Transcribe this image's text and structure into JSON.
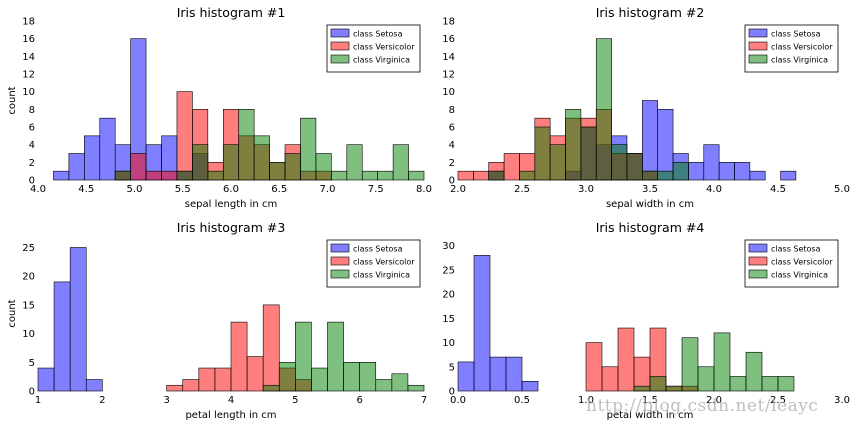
{
  "watermark": "http://blog.csdn.net/leayc",
  "colors": {
    "setosa": "#0000ff",
    "versicolor": "#ff0000",
    "virginica": "#008000",
    "fill_alpha": 0.5
  },
  "chart_data": [
    {
      "type": "bar",
      "title": "Iris histogram #1",
      "xlabel": "sepal length in cm",
      "ylabel": "count",
      "xlim": [
        4.0,
        8.0
      ],
      "ylim": [
        0,
        18
      ],
      "xticks": [
        "4.0",
        "4.5",
        "5.0",
        "5.5",
        "6.0",
        "6.5",
        "7.0",
        "7.5",
        "8.0"
      ],
      "yticks": [
        "0",
        "2",
        "4",
        "6",
        "8",
        "10",
        "12",
        "14",
        "16",
        "18"
      ],
      "bin_width": 0.16,
      "legend": "top-right",
      "series": [
        {
          "name": "class Setosa",
          "color_key": "setosa",
          "bins": [
            [
              4.0,
              4.16,
              0
            ],
            [
              4.16,
              4.32,
              1
            ],
            [
              4.32,
              4.48,
              3
            ],
            [
              4.48,
              4.64,
              5
            ],
            [
              4.64,
              4.8,
              7
            ],
            [
              4.8,
              4.96,
              4
            ],
            [
              4.96,
              5.12,
              16
            ],
            [
              5.12,
              5.28,
              4
            ],
            [
              5.28,
              5.44,
              5
            ],
            [
              5.44,
              5.6,
              1
            ],
            [
              5.6,
              5.76,
              3
            ]
          ]
        },
        {
          "name": "class Versicolor",
          "color_key": "versicolor",
          "bins": [
            [
              4.8,
              4.96,
              1
            ],
            [
              4.96,
              5.12,
              3
            ],
            [
              5.12,
              5.28,
              1
            ],
            [
              5.28,
              5.44,
              1
            ],
            [
              5.44,
              5.6,
              10
            ],
            [
              5.6,
              5.76,
              8
            ],
            [
              5.76,
              5.92,
              2
            ],
            [
              5.92,
              6.08,
              8
            ],
            [
              6.08,
              6.24,
              5
            ],
            [
              6.24,
              6.4,
              4
            ],
            [
              6.4,
              6.56,
              2
            ],
            [
              6.56,
              6.72,
              4
            ],
            [
              6.72,
              6.88,
              1
            ],
            [
              6.88,
              7.04,
              1
            ]
          ]
        },
        {
          "name": "class Virginica",
          "color_key": "virginica",
          "bins": [
            [
              4.8,
              4.96,
              1
            ],
            [
              5.44,
              5.6,
              1
            ],
            [
              5.6,
              5.76,
              4
            ],
            [
              5.76,
              5.92,
              1
            ],
            [
              5.92,
              6.08,
              4
            ],
            [
              6.08,
              6.24,
              8
            ],
            [
              6.24,
              6.4,
              5
            ],
            [
              6.4,
              6.56,
              2
            ],
            [
              6.56,
              6.72,
              3
            ],
            [
              6.72,
              6.88,
              7
            ],
            [
              6.88,
              7.04,
              3
            ],
            [
              7.04,
              7.2,
              1
            ],
            [
              7.2,
              7.36,
              4
            ],
            [
              7.36,
              7.52,
              1
            ],
            [
              7.52,
              7.68,
              1
            ],
            [
              7.68,
              7.84,
              4
            ],
            [
              7.84,
              8.0,
              1
            ]
          ]
        }
      ]
    },
    {
      "type": "bar",
      "title": "Iris histogram #2",
      "xlabel": "sepal width in cm",
      "ylabel": "",
      "xlim": [
        2.0,
        5.0
      ],
      "ylim": [
        0,
        18
      ],
      "xticks": [
        "2.0",
        "2.5",
        "3.0",
        "3.5",
        "4.0",
        "4.5",
        "5.0"
      ],
      "yticks": [
        "0",
        "2",
        "4",
        "6",
        "8",
        "10",
        "12",
        "14",
        "16",
        "18"
      ],
      "bin_width": 0.12,
      "legend": "top-right",
      "series": [
        {
          "name": "class Setosa",
          "color_key": "setosa",
          "bins": [
            [
              2.24,
              2.36,
              1
            ],
            [
              2.84,
              2.96,
              1
            ],
            [
              2.96,
              3.08,
              6
            ],
            [
              3.08,
              3.2,
              4
            ],
            [
              3.2,
              3.32,
              5
            ],
            [
              3.32,
              3.44,
              3
            ],
            [
              3.44,
              3.56,
              9
            ],
            [
              3.56,
              3.68,
              8
            ],
            [
              3.68,
              3.8,
              3
            ],
            [
              3.8,
              3.92,
              2
            ],
            [
              3.92,
              4.04,
              4
            ],
            [
              4.04,
              4.16,
              2
            ],
            [
              4.16,
              4.28,
              2
            ],
            [
              4.28,
              4.4,
              1
            ],
            [
              4.52,
              4.64,
              1
            ]
          ]
        },
        {
          "name": "class Versicolor",
          "color_key": "versicolor",
          "bins": [
            [
              2.0,
              2.12,
              1
            ],
            [
              2.12,
              2.24,
              1
            ],
            [
              2.24,
              2.36,
              2
            ],
            [
              2.36,
              2.48,
              3
            ],
            [
              2.48,
              2.6,
              3
            ],
            [
              2.6,
              2.72,
              7
            ],
            [
              2.72,
              2.84,
              5
            ],
            [
              2.84,
              2.96,
              7
            ],
            [
              2.96,
              3.08,
              7
            ],
            [
              3.08,
              3.2,
              8
            ],
            [
              3.2,
              3.32,
              3
            ],
            [
              3.32,
              3.44,
              3
            ],
            [
              3.44,
              3.56,
              1
            ]
          ]
        },
        {
          "name": "class Virginica",
          "color_key": "virginica",
          "bins": [
            [
              2.24,
              2.36,
              1
            ],
            [
              2.48,
              2.6,
              1
            ],
            [
              2.6,
              2.72,
              6
            ],
            [
              2.72,
              2.84,
              4
            ],
            [
              2.84,
              2.96,
              8
            ],
            [
              2.96,
              3.08,
              6
            ],
            [
              3.08,
              3.2,
              16
            ],
            [
              3.2,
              3.32,
              4
            ],
            [
              3.32,
              3.44,
              3
            ],
            [
              3.44,
              3.56,
              1
            ],
            [
              3.56,
              3.68,
              1
            ],
            [
              3.68,
              3.8,
              2
            ]
          ]
        }
      ]
    },
    {
      "type": "bar",
      "title": "Iris histogram #3",
      "xlabel": "petal length in cm",
      "ylabel": "count",
      "xlim": [
        1,
        7
      ],
      "ylim": [
        0,
        27
      ],
      "xticks": [
        "1",
        "2",
        "3",
        "4",
        "5",
        "6",
        "7"
      ],
      "yticks": [
        "0",
        "5",
        "10",
        "15",
        "20",
        "25"
      ],
      "bin_width": 0.25,
      "legend": "top-right",
      "series": [
        {
          "name": "class Setosa",
          "color_key": "setosa",
          "bins": [
            [
              1.0,
              1.25,
              4
            ],
            [
              1.25,
              1.5,
              19
            ],
            [
              1.5,
              1.75,
              25
            ],
            [
              1.75,
              2.0,
              2
            ]
          ]
        },
        {
          "name": "class Versicolor",
          "color_key": "versicolor",
          "bins": [
            [
              3.0,
              3.25,
              1
            ],
            [
              3.25,
              3.5,
              2
            ],
            [
              3.5,
              3.75,
              4
            ],
            [
              3.75,
              4.0,
              4
            ],
            [
              4.0,
              4.25,
              12
            ],
            [
              4.25,
              4.5,
              6
            ],
            [
              4.5,
              4.75,
              15
            ],
            [
              4.75,
              5.0,
              4
            ],
            [
              5.0,
              5.25,
              2
            ]
          ]
        },
        {
          "name": "class Virginica",
          "color_key": "virginica",
          "bins": [
            [
              4.5,
              4.75,
              1
            ],
            [
              4.75,
              5.0,
              5
            ],
            [
              5.0,
              5.25,
              12
            ],
            [
              5.25,
              5.5,
              4
            ],
            [
              5.5,
              5.75,
              12
            ],
            [
              5.75,
              6.0,
              5
            ],
            [
              6.0,
              6.25,
              5
            ],
            [
              6.25,
              6.5,
              2
            ],
            [
              6.5,
              6.75,
              3
            ],
            [
              6.75,
              7.0,
              1
            ]
          ]
        }
      ]
    },
    {
      "type": "bar",
      "title": "Iris histogram #4",
      "xlabel": "petal width in cm",
      "ylabel": "",
      "xlim": [
        0.0,
        3.0
      ],
      "ylim": [
        0,
        32
      ],
      "xticks": [
        "0.0",
        "0.5",
        "1.0",
        "1.5",
        "2.0",
        "2.5",
        "3.0"
      ],
      "yticks": [
        "0",
        "5",
        "10",
        "15",
        "20",
        "25",
        "30"
      ],
      "bin_width": 0.125,
      "legend": "top-right",
      "series": [
        {
          "name": "class Setosa",
          "color_key": "setosa",
          "bins": [
            [
              0.0,
              0.125,
              6
            ],
            [
              0.125,
              0.25,
              28
            ],
            [
              0.25,
              0.375,
              7
            ],
            [
              0.375,
              0.5,
              7
            ],
            [
              0.5,
              0.625,
              2
            ]
          ]
        },
        {
          "name": "class Versicolor",
          "color_key": "versicolor",
          "bins": [
            [
              1.0,
              1.125,
              10
            ],
            [
              1.125,
              1.25,
              5
            ],
            [
              1.25,
              1.375,
              13
            ],
            [
              1.375,
              1.5,
              7
            ],
            [
              1.5,
              1.625,
              13
            ],
            [
              1.625,
              1.75,
              1
            ],
            [
              1.75,
              1.875,
              1
            ]
          ]
        },
        {
          "name": "class Virginica",
          "color_key": "virginica",
          "bins": [
            [
              1.375,
              1.5,
              1
            ],
            [
              1.5,
              1.625,
              3
            ],
            [
              1.625,
              1.75,
              1
            ],
            [
              1.75,
              1.875,
              11
            ],
            [
              1.875,
              2.0,
              5
            ],
            [
              2.0,
              2.125,
              12
            ],
            [
              2.125,
              2.25,
              3
            ],
            [
              2.25,
              2.375,
              8
            ],
            [
              2.375,
              2.5,
              3
            ],
            [
              2.5,
              2.625,
              3
            ]
          ]
        }
      ]
    }
  ]
}
